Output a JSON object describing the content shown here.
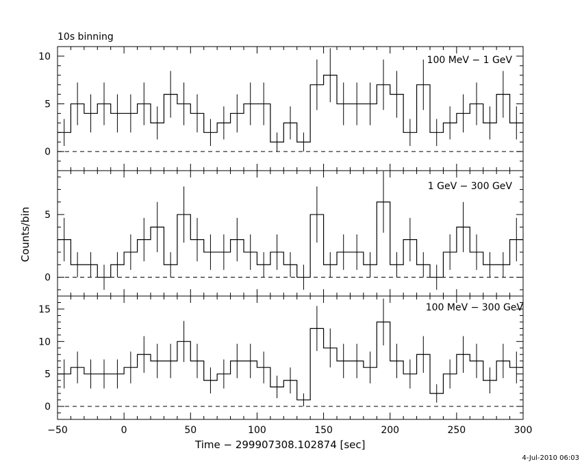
{
  "chart_data": {
    "type": "line",
    "title": "10s binning",
    "xlabel": "Time − 299907308.102874 [sec]",
    "ylabel": "Counts/bin",
    "footer": "4-Jul-2010 06:03",
    "x_ticks": [
      "−50",
      "0",
      "50",
      "100",
      "150",
      "200",
      "250",
      "300"
    ],
    "xlim": [
      -50,
      300
    ],
    "bin_width": 10,
    "x": [
      -45,
      -35,
      -25,
      -15,
      -5,
      5,
      15,
      25,
      35,
      45,
      55,
      65,
      75,
      85,
      95,
      105,
      115,
      125,
      135,
      145,
      155,
      165,
      175,
      185,
      195,
      205,
      215,
      225,
      235,
      245,
      255,
      265,
      275,
      285,
      295
    ],
    "panels": [
      {
        "label": "100 MeV − 1 GeV",
        "ylim": [
          -2,
          11
        ],
        "y_ticks": [
          "0",
          "5",
          "10"
        ],
        "values": [
          2,
          5,
          4,
          5,
          4,
          4,
          5,
          3,
          6,
          5,
          4,
          2,
          3,
          4,
          5,
          5,
          1,
          3,
          1,
          7,
          8,
          5,
          5,
          5,
          7,
          6,
          2,
          7,
          2,
          3,
          4,
          5,
          3,
          6,
          3
        ]
      },
      {
        "label": "1 GeV − 300 GeV",
        "ylim": [
          -1.5,
          8.5
        ],
        "y_ticks": [
          "0",
          "5"
        ],
        "values": [
          3,
          1,
          1,
          0,
          1,
          2,
          3,
          4,
          1,
          5,
          3,
          2,
          2,
          3,
          2,
          1,
          2,
          1,
          0,
          5,
          1,
          2,
          2,
          1,
          6,
          1,
          3,
          1,
          0,
          2,
          4,
          2,
          1,
          1,
          3
        ]
      },
      {
        "label": "100 MeV − 300 GeV",
        "ylim": [
          -2,
          17
        ],
        "y_ticks": [
          "0",
          "5",
          "10",
          "15"
        ],
        "values": [
          5,
          6,
          5,
          5,
          5,
          6,
          8,
          7,
          7,
          10,
          7,
          4,
          5,
          7,
          7,
          6,
          3,
          4,
          1,
          12,
          9,
          7,
          7,
          6,
          13,
          7,
          5,
          8,
          2,
          5,
          8,
          7,
          4,
          7,
          6
        ]
      }
    ]
  }
}
